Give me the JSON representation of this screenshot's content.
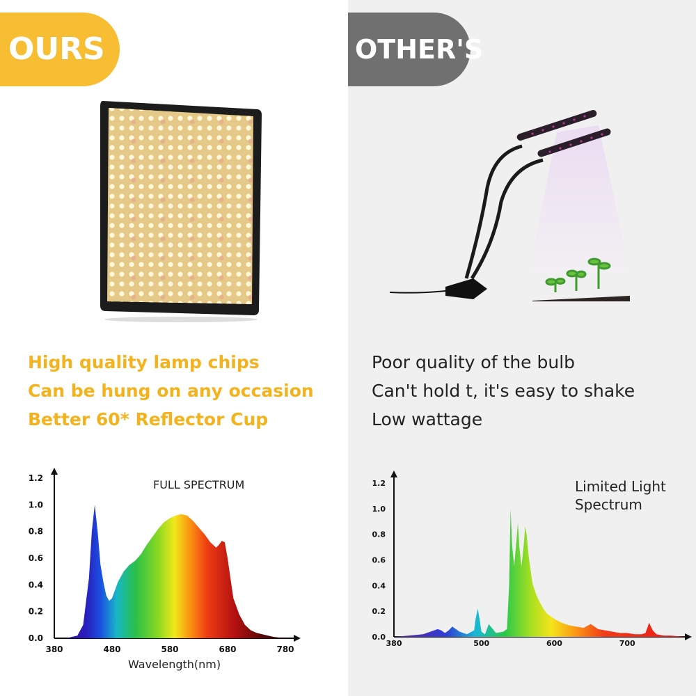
{
  "colors": {
    "ours": "#f7bd33",
    "others": "#707070",
    "ours_text": "#f2b31e"
  },
  "ours": {
    "tag": "OURS",
    "features": [
      "High quality lamp chips",
      "Can be hung on any occasion",
      "Better 60* Reflector Cup"
    ]
  },
  "others": {
    "tag": "OTHER'S",
    "features": [
      "Poor quality of the bulb",
      "Can't hold t, it's easy to shake",
      "Low wattage"
    ]
  },
  "chart_data": [
    {
      "type": "area",
      "title": "FULL SPECTRUM",
      "xlabel": "Wavelength(nm)",
      "ylabel": "",
      "xlim": [
        380,
        780
      ],
      "ylim": [
        0,
        1.2
      ],
      "x_ticks": [
        "380",
        "480",
        "580",
        "680",
        "780"
      ],
      "y_ticks": [
        "0.0",
        "0.2",
        "0.4",
        "0.6",
        "0.8",
        "1.0",
        "1.2"
      ],
      "grid": false,
      "x": [
        380,
        400,
        420,
        430,
        440,
        445,
        450,
        455,
        460,
        465,
        470,
        475,
        480,
        490,
        500,
        510,
        520,
        530,
        540,
        550,
        560,
        570,
        580,
        590,
        600,
        610,
        620,
        630,
        640,
        650,
        660,
        665,
        670,
        675,
        680,
        685,
        690,
        700,
        710,
        720,
        730,
        740,
        750,
        760,
        780
      ],
      "y": [
        0.0,
        0.0,
        0.02,
        0.1,
        0.45,
        0.8,
        1.0,
        0.8,
        0.55,
        0.42,
        0.32,
        0.28,
        0.3,
        0.42,
        0.5,
        0.55,
        0.58,
        0.63,
        0.7,
        0.76,
        0.82,
        0.87,
        0.9,
        0.92,
        0.93,
        0.92,
        0.88,
        0.83,
        0.78,
        0.72,
        0.68,
        0.7,
        0.73,
        0.72,
        0.6,
        0.45,
        0.3,
        0.18,
        0.1,
        0.06,
        0.04,
        0.03,
        0.02,
        0.01,
        0.0
      ]
    },
    {
      "type": "area",
      "title": "Limited Light Spectrum",
      "xlabel": "",
      "ylabel": "",
      "xlim": [
        380,
        780
      ],
      "ylim": [
        0,
        1.2
      ],
      "x_ticks": [
        "380",
        "500",
        "600",
        "700"
      ],
      "y_ticks": [
        "0.0",
        "0.2",
        "0.4",
        "0.6",
        "0.8",
        "1.0",
        "1.2"
      ],
      "grid": false,
      "x": [
        380,
        400,
        420,
        430,
        440,
        445,
        450,
        455,
        460,
        465,
        470,
        480,
        490,
        492,
        495,
        498,
        500,
        505,
        510,
        520,
        530,
        535,
        538,
        540,
        542,
        545,
        548,
        550,
        552,
        555,
        558,
        560,
        562,
        565,
        568,
        570,
        575,
        580,
        585,
        590,
        600,
        610,
        620,
        630,
        640,
        650,
        660,
        670,
        680,
        690,
        700,
        710,
        720,
        725,
        730,
        735,
        740,
        750,
        760,
        780
      ],
      "y": [
        0.0,
        0.01,
        0.02,
        0.04,
        0.06,
        0.05,
        0.03,
        0.05,
        0.08,
        0.06,
        0.04,
        0.02,
        0.05,
        0.14,
        0.22,
        0.12,
        0.04,
        0.02,
        0.1,
        0.03,
        0.04,
        0.06,
        0.4,
        1.0,
        0.72,
        0.55,
        0.75,
        0.89,
        0.7,
        0.55,
        0.72,
        0.86,
        0.8,
        0.62,
        0.5,
        0.42,
        0.33,
        0.27,
        0.22,
        0.18,
        0.14,
        0.11,
        0.09,
        0.08,
        0.07,
        0.1,
        0.06,
        0.05,
        0.04,
        0.03,
        0.03,
        0.02,
        0.02,
        0.03,
        0.11,
        0.05,
        0.02,
        0.01,
        0.01,
        0.0
      ]
    }
  ]
}
